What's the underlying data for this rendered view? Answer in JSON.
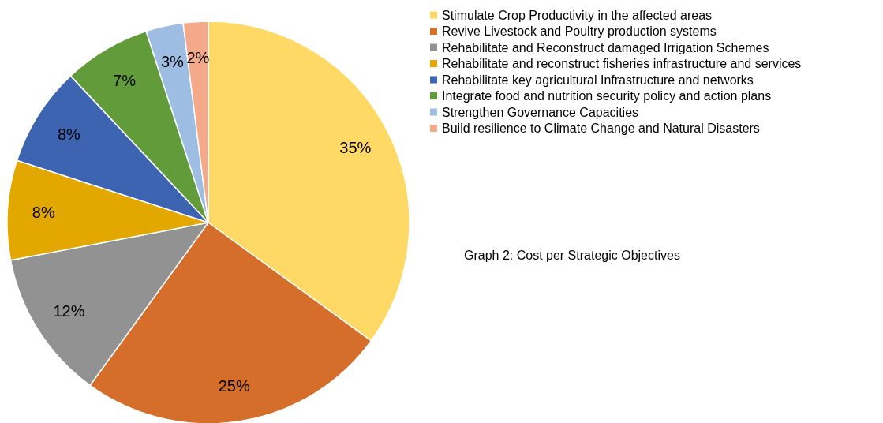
{
  "chart_data": {
    "type": "pie",
    "title": "Graph 2: Cost per Strategic Objectives",
    "categories": [
      "Stimulate Crop Productivity in the affected areas",
      "Revive Livestock and Poultry production systems",
      "Rehabilitate and Reconstruct damaged Irrigation Schemes",
      "Rehabilitate and reconstruct fisheries infrastructure and services",
      "Rehabilitate key agricultural Infrastructure and networks",
      "Integrate food and nutrition security policy and action plans",
      "Strengthen Governance Capacities",
      "Build resilience to Climate Change and Natural Disasters"
    ],
    "values": [
      35,
      25,
      12,
      8,
      8,
      7,
      3,
      2
    ],
    "value_labels": [
      "35%",
      "25%",
      "12%",
      "8%",
      "8%",
      "7%",
      "3%",
      "2%"
    ],
    "colors": [
      "#ffd966",
      "#d46e2a",
      "#929292",
      "#e2a800",
      "#3c64b0",
      "#629b3a",
      "#9dbde3",
      "#f4a98b"
    ],
    "legend": "top right"
  }
}
